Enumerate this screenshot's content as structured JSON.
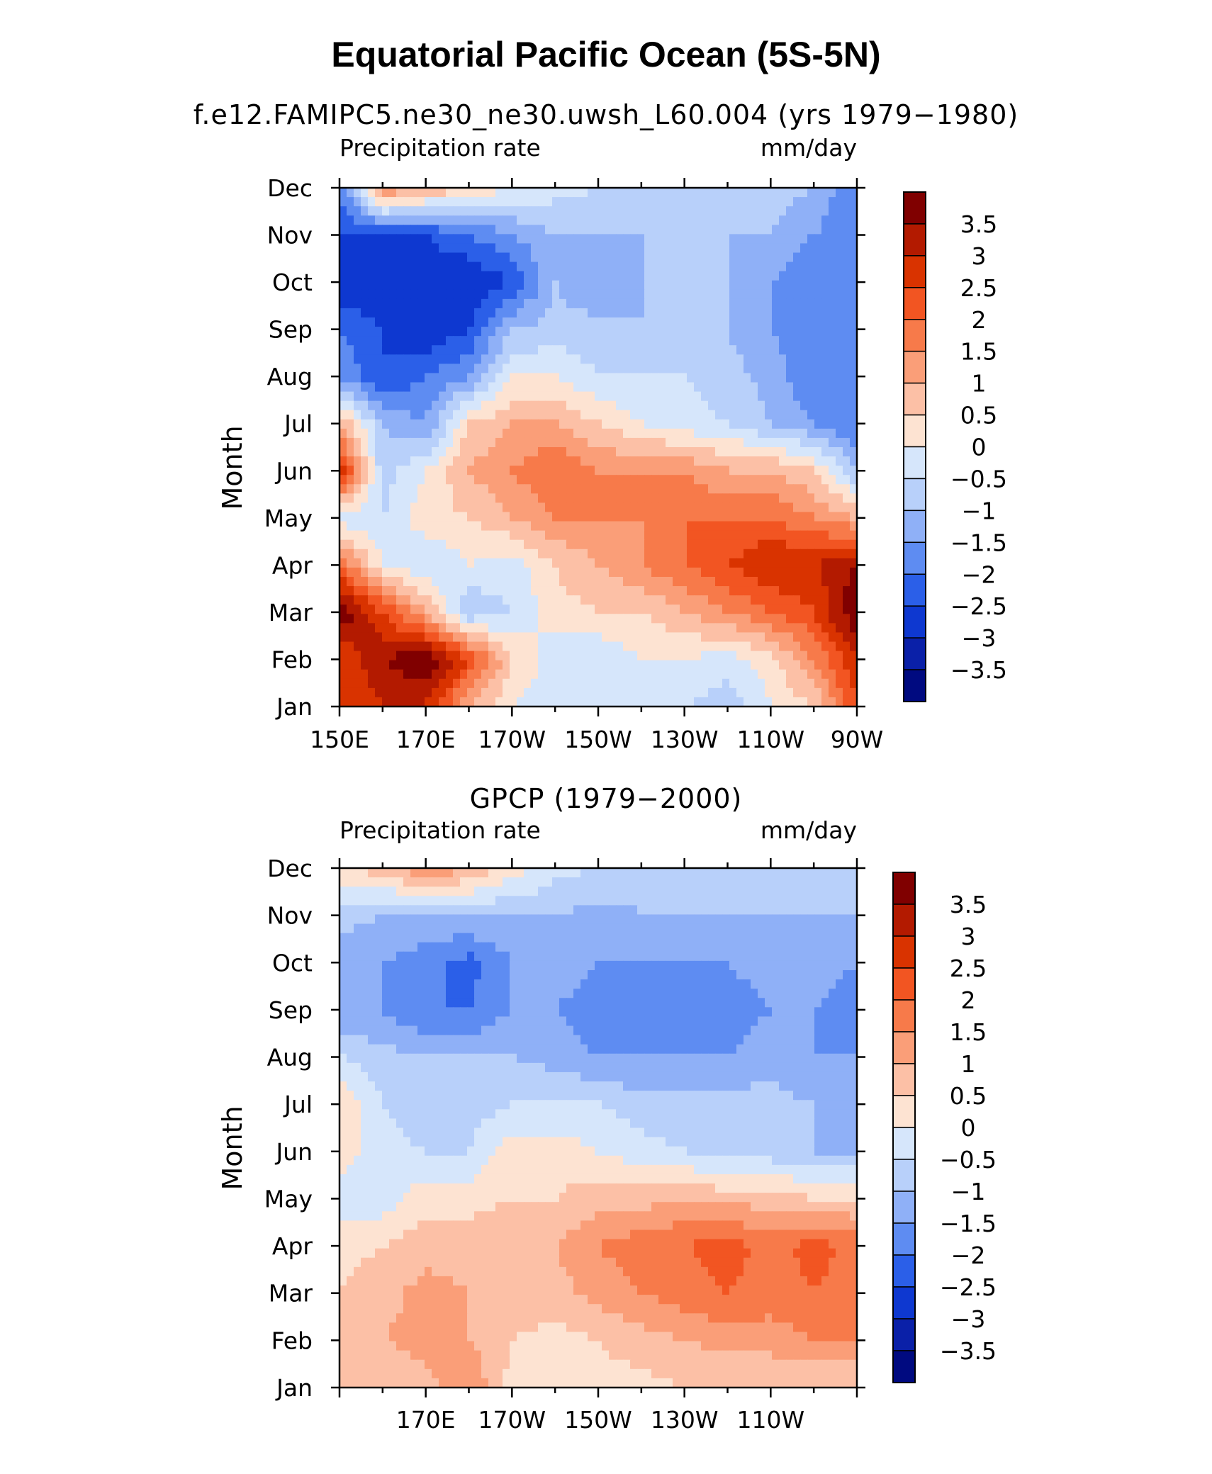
{
  "figure": {
    "title": "Equatorial Pacific Ocean (5S-5N)"
  },
  "colorbar": {
    "levels": [
      "3.5",
      "3",
      "2.5",
      "2",
      "1.5",
      "1",
      "0.5",
      "0",
      "−0.5",
      "−1",
      "−1.5",
      "−2",
      "−2.5",
      "−3",
      "−3.5"
    ],
    "colors": [
      "#800000",
      "#b31a00",
      "#d93300",
      "#f25522",
      "#f77a4a",
      "#fa9e78",
      "#fcc0a6",
      "#fde3d2",
      "#d6e6fb",
      "#b8d0fa",
      "#8fb0f7",
      "#5e8cf2",
      "#2b5fe8",
      "#0e38d0",
      "#0a20a8",
      "#000a80"
    ]
  },
  "chart_data": [
    {
      "type": "heatmap",
      "subtitle": "f.e12.FAMIPC5.ne30_ne30.uwsh_L60.004 (yrs 1979−1980)",
      "left_label": "Precipitation rate",
      "right_label": "mm/day",
      "ylabel": "Month",
      "xlabel": "",
      "x_tick_labels": [
        "150E",
        "170E",
        "170W",
        "150W",
        "130W",
        "110W",
        "90W"
      ],
      "y_tick_labels": [
        "Jan",
        "Feb",
        "Mar",
        "Apr",
        "May",
        "Jun",
        "Jul",
        "Aug",
        "Sep",
        "Oct",
        "Nov",
        "Dec"
      ],
      "x_range": [
        "150E",
        "90W"
      ],
      "zlim": [
        -4,
        4
      ],
      "longitudes": [
        "150E",
        "160E",
        "170E",
        "180",
        "170W",
        "160W",
        "150W",
        "140W",
        "130W",
        "120W",
        "110W",
        "100W",
        "90W"
      ],
      "months": [
        "Jan",
        "Feb",
        "Mar",
        "Apr",
        "May",
        "Jun",
        "Jul",
        "Aug",
        "Sep",
        "Oct",
        "Nov",
        "Dec"
      ],
      "values": [
        [
          2.5,
          3.0,
          3.0,
          1.0,
          0.0,
          -0.3,
          -0.5,
          -0.3,
          -0.5,
          -0.8,
          0.0,
          0.5,
          2.5
        ],
        [
          2.5,
          3.5,
          4.0,
          2.5,
          0.5,
          -0.3,
          -0.5,
          0.0,
          0.0,
          -0.3,
          0.3,
          1.5,
          3.0
        ],
        [
          4.0,
          2.5,
          1.0,
          -1.0,
          -0.5,
          0.3,
          0.5,
          0.5,
          1.0,
          1.5,
          2.0,
          2.5,
          4.0
        ],
        [
          2.0,
          0.0,
          -0.5,
          0.0,
          -0.3,
          0.5,
          1.0,
          1.5,
          2.0,
          2.5,
          3.0,
          3.0,
          3.5
        ],
        [
          -0.3,
          -0.5,
          0.3,
          0.5,
          1.0,
          1.5,
          1.5,
          1.5,
          2.0,
          2.0,
          2.0,
          1.5,
          1.0
        ],
        [
          3.0,
          -0.8,
          0.0,
          1.0,
          1.5,
          2.0,
          1.5,
          1.5,
          1.5,
          1.0,
          1.0,
          0.5,
          -1.0
        ],
        [
          1.0,
          -1.0,
          -1.5,
          0.5,
          1.0,
          1.0,
          0.5,
          0.0,
          -0.3,
          -0.5,
          -1.0,
          -1.5,
          -2.0
        ],
        [
          -1.5,
          -2.5,
          -2.0,
          -1.5,
          0.0,
          0.0,
          -0.5,
          -0.5,
          -0.5,
          -0.8,
          -1.2,
          -2.0,
          -2.0
        ],
        [
          -2.0,
          -2.5,
          -3.0,
          -2.5,
          -1.0,
          -0.8,
          -0.8,
          -1.0,
          -1.0,
          -1.0,
          -1.5,
          -2.0,
          -2.0
        ],
        [
          -3.0,
          -3.0,
          -3.0,
          -3.0,
          -2.5,
          -1.0,
          -1.5,
          -1.0,
          -0.5,
          -1.0,
          -1.5,
          -2.0,
          -2.0
        ],
        [
          -2.5,
          -2.5,
          -2.5,
          -2.0,
          -1.5,
          -1.0,
          -1.0,
          -1.0,
          -0.5,
          -1.0,
          -1.0,
          -1.5,
          -2.0
        ],
        [
          -2.0,
          1.5,
          1.0,
          0.5,
          0.0,
          -0.3,
          -0.5,
          -0.5,
          -0.5,
          -0.5,
          -0.8,
          -1.0,
          -2.0
        ]
      ]
    },
    {
      "type": "heatmap",
      "subtitle": "GPCP (1979−2000)",
      "left_label": "Precipitation rate",
      "right_label": "mm/day",
      "ylabel": "Month",
      "xlabel": "",
      "x_tick_labels": [
        "170E",
        "170W",
        "150W",
        "130W",
        "110W"
      ],
      "y_tick_labels": [
        "Jan",
        "Feb",
        "Mar",
        "Apr",
        "May",
        "Jun",
        "Jul",
        "Aug",
        "Sep",
        "Oct",
        "Nov",
        "Dec"
      ],
      "x_range": [
        "150E",
        "90W"
      ],
      "zlim": [
        -4,
        4
      ],
      "longitudes": [
        "150E",
        "160E",
        "170E",
        "180",
        "170W",
        "160W",
        "150W",
        "140W",
        "130W",
        "120W",
        "110W",
        "100W",
        "90W"
      ],
      "months": [
        "Jan",
        "Feb",
        "Mar",
        "Apr",
        "May",
        "Jun",
        "Jul",
        "Aug",
        "Sep",
        "Oct",
        "Nov",
        "Dec"
      ],
      "values": [
        [
          0.5,
          0.5,
          0.8,
          1.5,
          0.3,
          0.2,
          0.3,
          0.3,
          0.5,
          0.5,
          0.5,
          0.5,
          0.5
        ],
        [
          0.8,
          1.0,
          1.2,
          1.0,
          0.5,
          0.3,
          0.5,
          0.8,
          1.0,
          1.2,
          1.2,
          1.5,
          1.5
        ],
        [
          0.5,
          0.8,
          1.2,
          1.0,
          0.8,
          0.8,
          1.2,
          1.5,
          1.8,
          2.0,
          1.8,
          2.0,
          1.8
        ],
        [
          0.3,
          0.5,
          0.8,
          0.8,
          0.8,
          1.0,
          1.5,
          1.8,
          2.0,
          2.2,
          1.8,
          2.2,
          1.8
        ],
        [
          -0.3,
          -0.3,
          0.3,
          0.3,
          0.5,
          0.5,
          0.8,
          0.8,
          1.0,
          0.8,
          0.8,
          0.5,
          0.5
        ],
        [
          0.3,
          -0.3,
          -0.5,
          -0.5,
          0.3,
          0.3,
          0.0,
          -0.3,
          -0.5,
          -0.8,
          -0.8,
          -1.0,
          -1.0
        ],
        [
          0.5,
          -0.5,
          -0.8,
          -0.8,
          -0.5,
          -0.5,
          -0.5,
          -0.8,
          -0.8,
          -0.8,
          -0.8,
          -1.0,
          -1.2
        ],
        [
          -0.5,
          -0.8,
          -1.0,
          -1.0,
          -1.0,
          -1.2,
          -1.5,
          -1.5,
          -1.5,
          -1.5,
          -1.2,
          -1.5,
          -1.5
        ],
        [
          -1.5,
          -1.5,
          -2.0,
          -2.0,
          -1.5,
          -1.5,
          -1.8,
          -1.8,
          -1.8,
          -1.8,
          -1.5,
          -1.5,
          -1.8
        ],
        [
          -1.2,
          -1.5,
          -1.8,
          -2.2,
          -1.5,
          -1.2,
          -1.5,
          -1.5,
          -1.5,
          -1.5,
          -1.2,
          -1.2,
          -1.5
        ],
        [
          -0.8,
          -1.0,
          -1.0,
          -1.0,
          -1.0,
          -1.0,
          -1.2,
          -1.0,
          -1.0,
          -1.0,
          -1.0,
          -1.0,
          -1.0
        ],
        [
          0.3,
          0.8,
          1.5,
          1.0,
          0.3,
          -0.3,
          -0.5,
          -0.8,
          -0.8,
          -1.0,
          -1.0,
          -1.0,
          -1.0
        ]
      ]
    }
  ]
}
